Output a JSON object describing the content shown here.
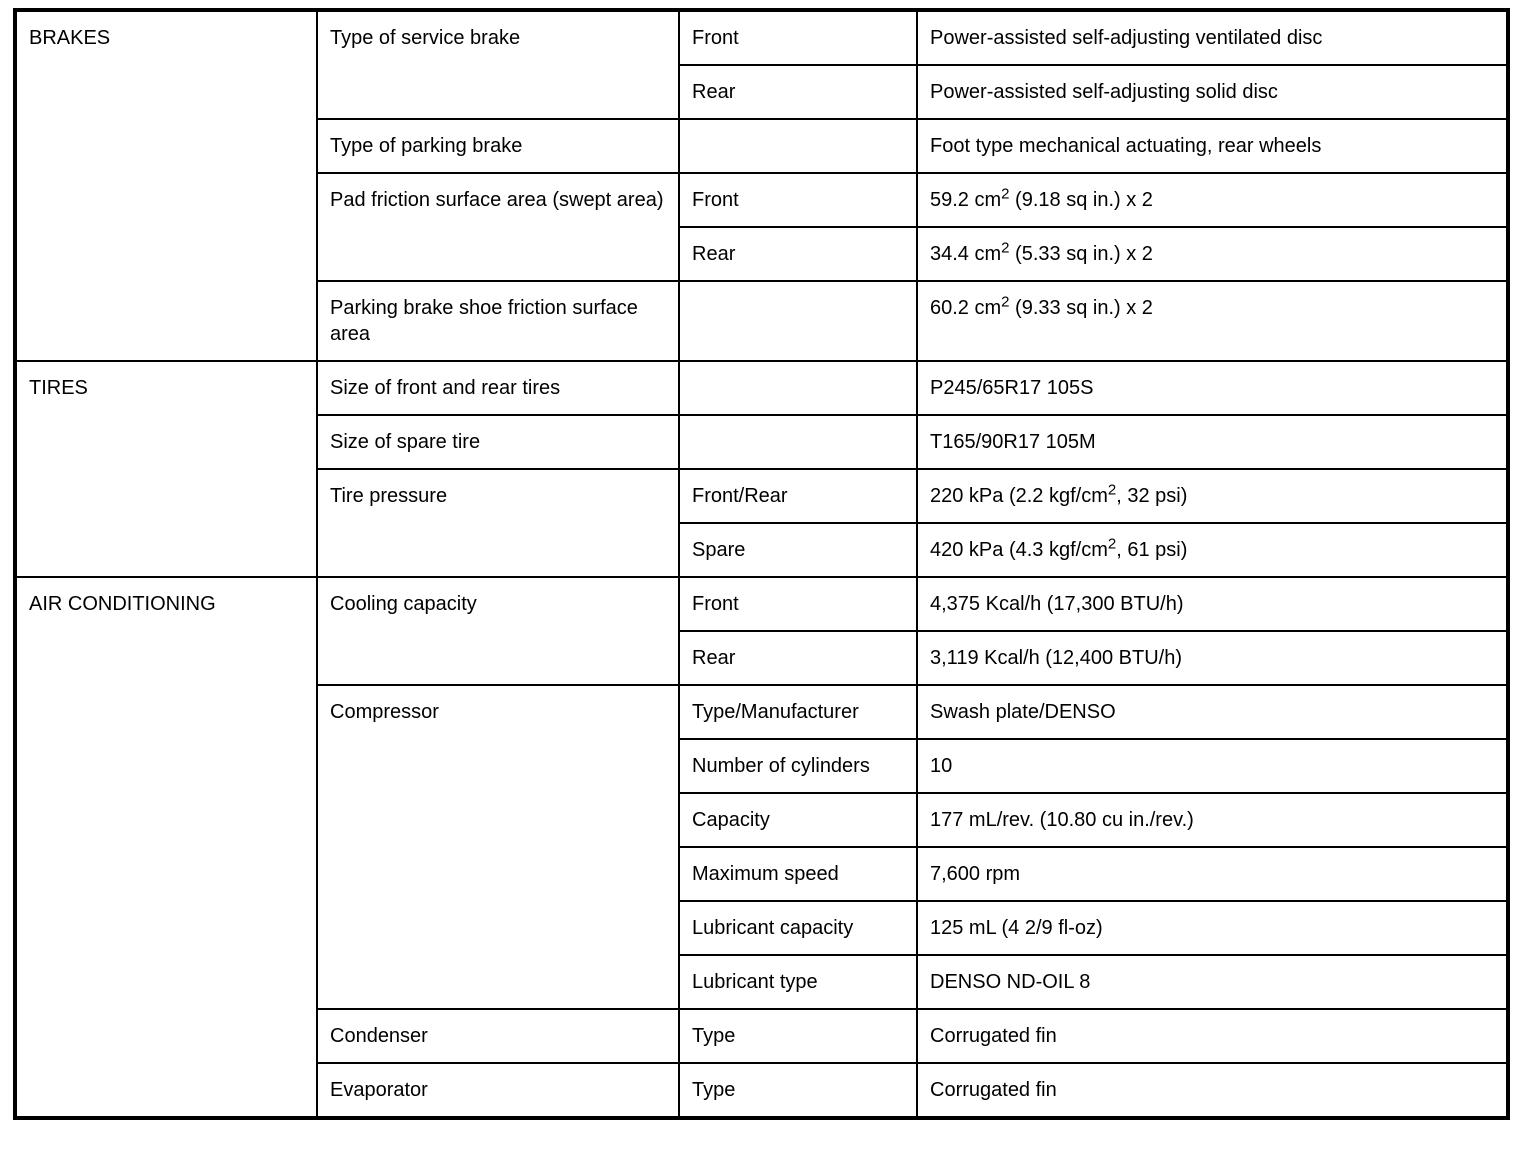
{
  "sections": [
    {
      "category": "BRAKES",
      "rows": [
        {
          "item": "Type of service brake",
          "sub": "Front",
          "value": "Power-assisted self-adjusting ventilated disc"
        },
        {
          "sub": "Rear",
          "value": "Power-assisted self-adjusting solid disc"
        },
        {
          "item": "Type of parking brake",
          "sub": "",
          "value": "Foot type mechanical actuating, rear wheels"
        },
        {
          "item": "Pad friction surface area (swept area)",
          "sub": "Front",
          "value_pre": "59.2 cm",
          "value_sup": "2",
          "value_post": " (9.18 sq in.) x 2"
        },
        {
          "sub": "Rear",
          "value_pre": "34.4 cm",
          "value_sup": "2",
          "value_post": " (5.33 sq in.) x 2"
        },
        {
          "item": "Parking brake shoe friction surface area",
          "sub": "",
          "value_pre": "60.2 cm",
          "value_sup": "2",
          "value_post": " (9.33 sq in.) x 2"
        }
      ]
    },
    {
      "category": "TIRES",
      "rows": [
        {
          "item": "Size of front and rear tires",
          "sub": "",
          "value": "P245/65R17 105S"
        },
        {
          "item": "Size of spare tire",
          "sub": "",
          "value": "T165/90R17 105M"
        },
        {
          "item": "Tire pressure",
          "sub": "Front/Rear",
          "value_pre": "220 kPa (2.2 kgf/cm",
          "value_sup": "2",
          "value_post": ", 32 psi)"
        },
        {
          "sub": "Spare",
          "value_pre": "420 kPa (4.3 kgf/cm",
          "value_sup": "2",
          "value_post": ", 61 psi)"
        }
      ]
    },
    {
      "category": "AIR CONDITIONING",
      "rows": [
        {
          "item": "Cooling capacity",
          "sub": "Front",
          "value": "4,375 Kcal/h (17,300 BTU/h)"
        },
        {
          "sub": "Rear",
          "value": "3,119 Kcal/h (12,400 BTU/h)"
        },
        {
          "item": "Compressor",
          "sub": "Type/Manufacturer",
          "value": "Swash plate/DENSO"
        },
        {
          "sub": "Number of cylinders",
          "value": "10"
        },
        {
          "sub": "Capacity",
          "value": "177 mL/rev. (10.80 cu in./rev.)"
        },
        {
          "sub": "Maximum speed",
          "value": "7,600 rpm"
        },
        {
          "sub": "Lubricant capacity",
          "value": "125 mL (4 2/9 fl-oz)"
        },
        {
          "sub": "Lubricant type",
          "value": "DENSO ND-OIL 8"
        },
        {
          "item": "Condenser",
          "sub": "Type",
          "value": "Corrugated fin"
        },
        {
          "item": "Evaporator",
          "sub": "Type",
          "value": "Corrugated fin"
        }
      ]
    }
  ]
}
